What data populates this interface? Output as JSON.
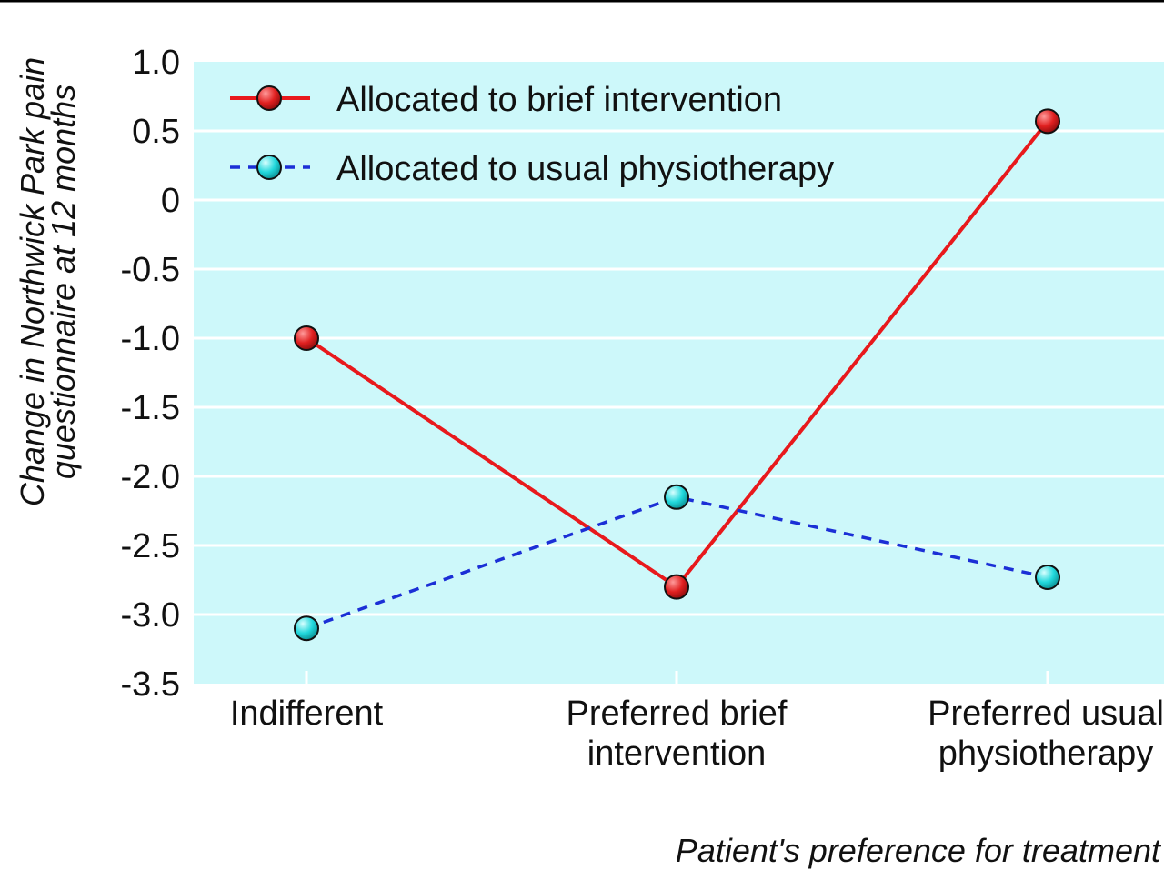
{
  "chart_data": {
    "type": "line",
    "categories": [
      "Indifferent",
      "Preferred brief intervention",
      "Preferred usual physiotherapy"
    ],
    "category_label_lines": [
      [
        "Indifferent"
      ],
      [
        "Preferred brief",
        "intervention"
      ],
      [
        "Preferred usual",
        "physiotherapy"
      ]
    ],
    "series": [
      {
        "name": "Allocated to brief intervention",
        "values": [
          -1.0,
          -2.8,
          0.57
        ],
        "color": "#e8191c",
        "marker_color": "#d81e1e",
        "line_style": "solid"
      },
      {
        "name": "Allocated to usual physiotherapy",
        "values": [
          -3.1,
          -2.15,
          -2.73
        ],
        "color": "#1b2fd6",
        "marker_color": "#20d4d8",
        "line_style": "dashed"
      }
    ],
    "ylabel_lines": [
      "Change in Northwick Park pain",
      "questionnaire at 12 months"
    ],
    "xlabel": "Patient's preference for treatment",
    "ylim": [
      -3.5,
      1.0
    ],
    "yticks": [
      1.0,
      0.5,
      0,
      -0.5,
      -1.0,
      -1.5,
      -2.0,
      -2.5,
      -3.0,
      -3.5
    ],
    "ytick_labels": [
      "1.0",
      "0.5",
      "0",
      "-0.5",
      "-1.0",
      "-1.5",
      "-2.0",
      "-2.5",
      "-3.0",
      "-3.5"
    ],
    "grid": true,
    "legend_position": "top-left",
    "plot_background": "#cdf8fa"
  }
}
